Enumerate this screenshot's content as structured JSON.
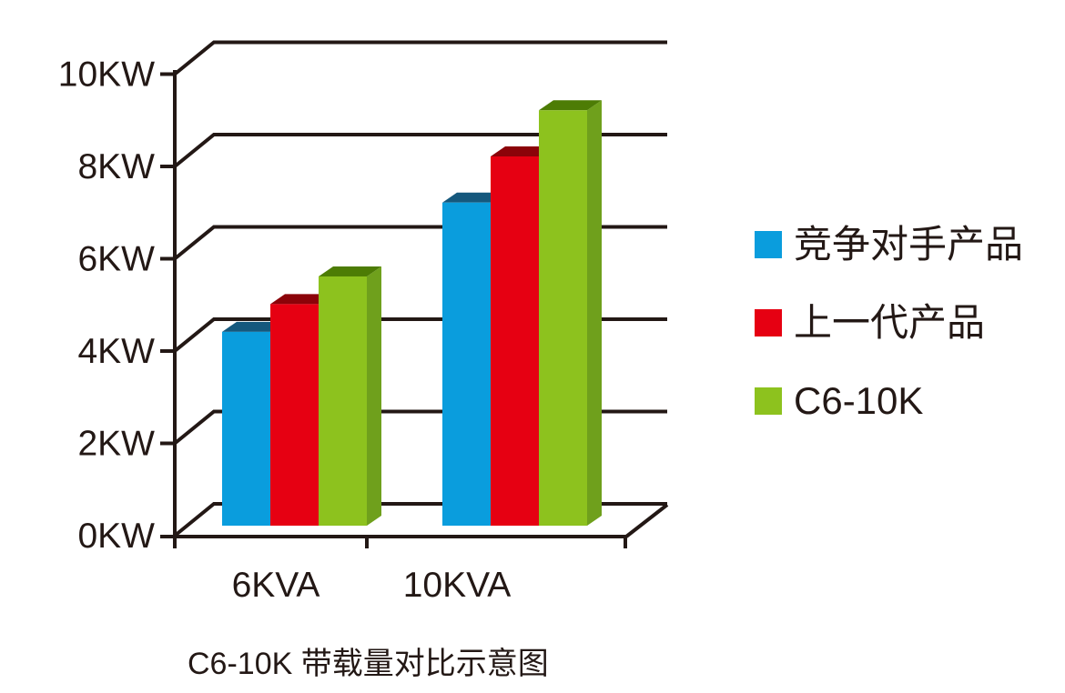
{
  "chart_data": {
    "type": "bar",
    "style": "3d-perspective-grouped",
    "title": "C6-10K 带载量对比示意图",
    "categories": [
      "6KVA",
      "10KVA"
    ],
    "series": [
      {
        "id": "competitor",
        "name": "竞争对手产品",
        "values": [
          4.2,
          7
        ],
        "unit": "KW",
        "color": "#0a9ddd",
        "top_color": "#15587d",
        "side_color": "#0d7fb3"
      },
      {
        "id": "previous-gen",
        "name": "上一代产品",
        "values": [
          4.8,
          8
        ],
        "unit": "KW",
        "color": "#e60012",
        "top_color": "#8b0309",
        "side_color": "#b3000e"
      },
      {
        "id": "c6-10k",
        "name": "C6-10K",
        "values": [
          5.4,
          9
        ],
        "unit": "KW",
        "color": "#8dc21e",
        "top_color": "#4d7c05",
        "side_color": "#6fa01c"
      }
    ],
    "yticks": [
      {
        "value": 0,
        "label": "0KW"
      },
      {
        "value": 2,
        "label": "2KW"
      },
      {
        "value": 4,
        "label": "4KW"
      },
      {
        "value": 6,
        "label": "6KW"
      },
      {
        "value": 8,
        "label": "8KW"
      },
      {
        "value": 10,
        "label": "10KW"
      }
    ],
    "ylim": [
      0,
      10
    ],
    "xlabel": "",
    "ylabel": "",
    "grid": true,
    "legend_position": "right",
    "axis_color": "#231815",
    "text_color": "#231815",
    "background": "#ffffff"
  }
}
